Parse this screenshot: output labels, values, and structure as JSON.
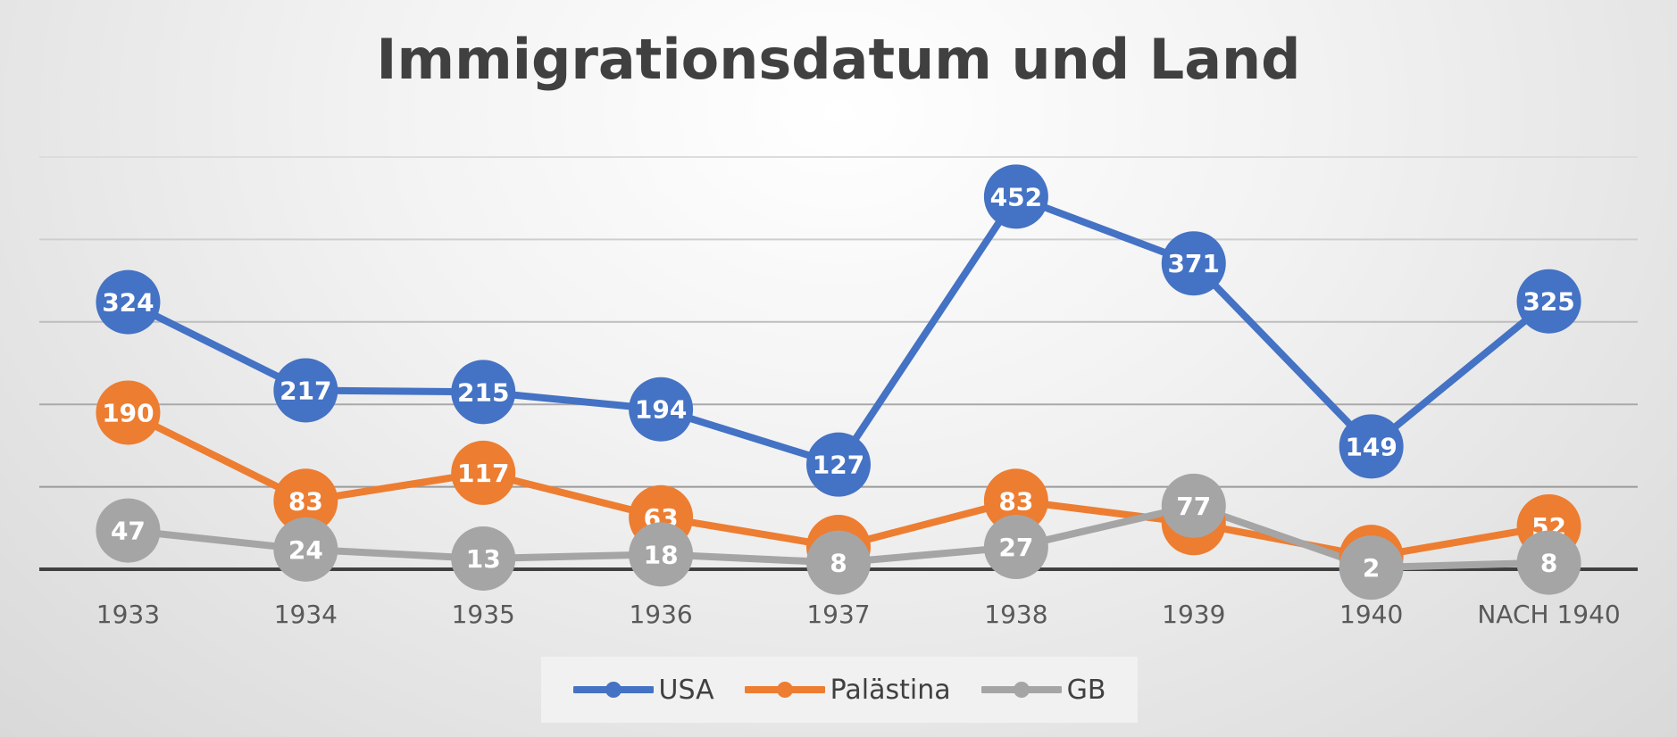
{
  "chart_data": {
    "type": "line",
    "title": "Immigrationsdatum und Land",
    "categories": [
      "1933",
      "1934",
      "1935",
      "1936",
      "1937",
      "1938",
      "1939",
      "1940",
      "NACH 1940"
    ],
    "series": [
      {
        "name": "USA",
        "color": "#4472C4",
        "values": [
          324,
          217,
          215,
          194,
          127,
          452,
          371,
          149,
          325
        ]
      },
      {
        "name": "Palästina",
        "color": "#ED7D31",
        "values": [
          190,
          83,
          117,
          63,
          27,
          83,
          56,
          15,
          52
        ]
      },
      {
        "name": "GB",
        "color": "#A5A5A5",
        "values": [
          47,
          24,
          13,
          18,
          8,
          27,
          77,
          2,
          8
        ]
      }
    ],
    "ylim": [
      0,
      500
    ],
    "grid": true,
    "legend": "bottom",
    "data_labels": true,
    "xlabel": "",
    "ylabel": ""
  }
}
